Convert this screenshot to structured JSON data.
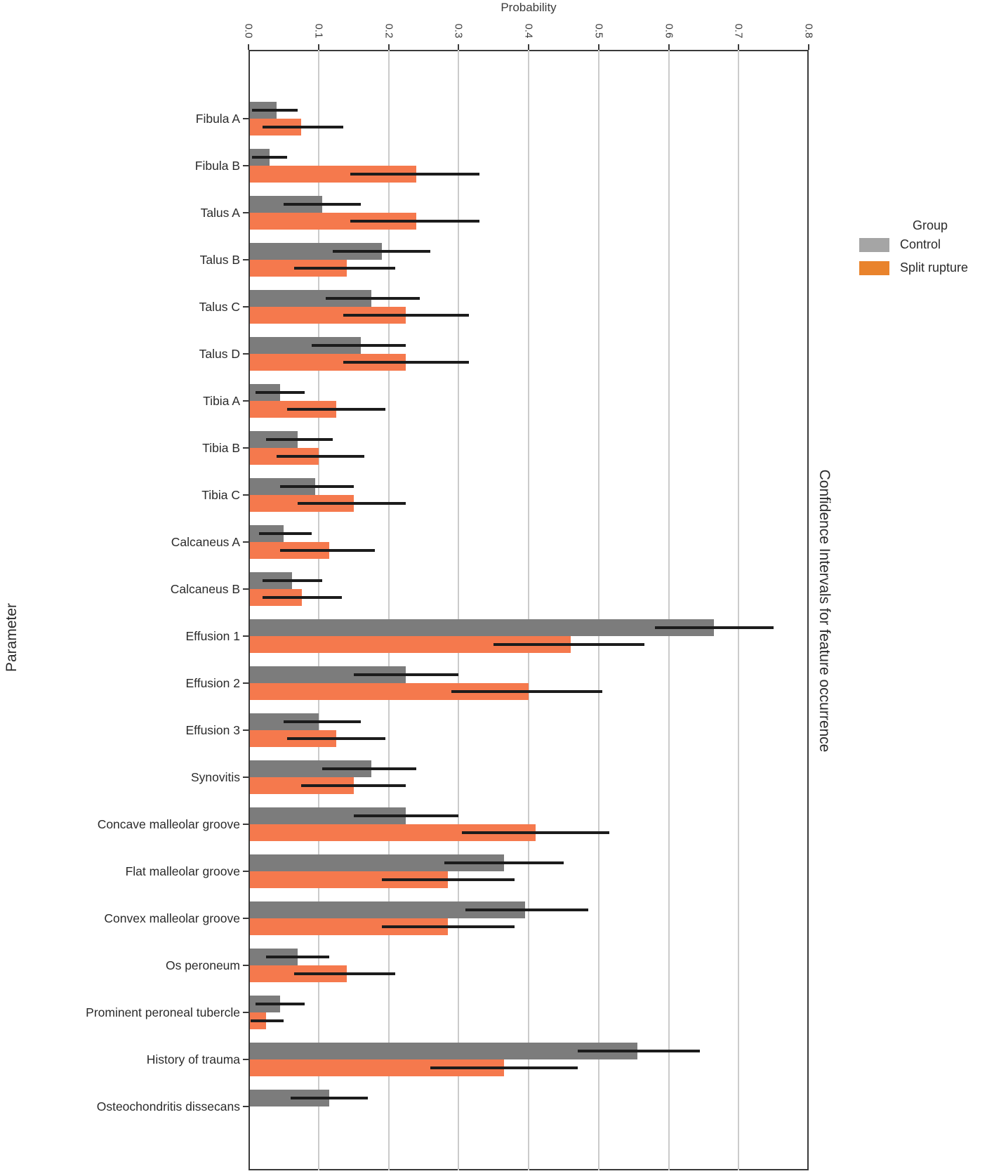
{
  "chart_data": {
    "type": "bar",
    "orientation": "horizontal",
    "xlabel": "Probability",
    "ylabel": "Parameter",
    "right_title": "Confidence Intervals for feature occurrence",
    "xlim": [
      0.0,
      0.8
    ],
    "x_ticks": [
      0.0,
      0.1,
      0.2,
      0.3,
      0.4,
      0.5,
      0.6,
      0.7,
      0.8
    ],
    "grid": true,
    "error_bars": true,
    "legend": {
      "title": "Group",
      "position": "right",
      "items": [
        {
          "label": "Control",
          "swatch_color": "#a5a5a5"
        },
        {
          "label": "Split rupture",
          "swatch_color": "#e9832c"
        }
      ]
    },
    "colors": {
      "control_bar": "#7c7c7c",
      "split_bar": "#f5794d",
      "error_bar": "#1c1c1c",
      "gridline": "#cbcbcb",
      "spine": "#3a3a3a"
    },
    "categories": [
      "Fibula A",
      "Fibula B",
      "Talus A",
      "Talus B",
      "Talus C",
      "Talus D",
      "Tibia A",
      "Tibia B",
      "Tibia C",
      "Calcaneus A",
      "Calcaneus B",
      "Effusion 1",
      "Effusion 2",
      "Effusion 3",
      "Synovitis",
      "Concave malleolar groove",
      "Flat malleolar groove",
      "Convex malleolar groove",
      "Os peroneum",
      "Prominent peroneal tubercle",
      "History of trauma",
      "Osteochondritis dissecans"
    ],
    "series": [
      {
        "name": "Control",
        "values": [
          0.04,
          0.03,
          0.105,
          0.19,
          0.175,
          0.16,
          0.045,
          0.07,
          0.095,
          0.05,
          0.062,
          0.665,
          0.225,
          0.1,
          0.175,
          0.225,
          0.365,
          0.395,
          0.07,
          0.045,
          0.555,
          0.115
        ],
        "ci_low": [
          0.005,
          0.005,
          0.05,
          0.12,
          0.11,
          0.09,
          0.01,
          0.025,
          0.045,
          0.015,
          0.02,
          0.58,
          0.15,
          0.05,
          0.105,
          0.15,
          0.28,
          0.31,
          0.025,
          0.01,
          0.47,
          0.06
        ],
        "ci_high": [
          0.07,
          0.055,
          0.16,
          0.26,
          0.245,
          0.225,
          0.08,
          0.12,
          0.15,
          0.09,
          0.105,
          0.75,
          0.3,
          0.16,
          0.24,
          0.3,
          0.45,
          0.485,
          0.115,
          0.08,
          0.645,
          0.17
        ]
      },
      {
        "name": "Split rupture",
        "values": [
          0.075,
          0.24,
          0.24,
          0.14,
          0.225,
          0.225,
          0.125,
          0.1,
          0.15,
          0.115,
          0.076,
          0.46,
          0.4,
          0.125,
          0.15,
          0.41,
          0.285,
          0.285,
          0.14,
          0.025,
          0.365,
          null
        ],
        "ci_low": [
          0.02,
          0.145,
          0.145,
          0.065,
          0.135,
          0.135,
          0.055,
          0.04,
          0.07,
          0.045,
          0.02,
          0.35,
          0.29,
          0.055,
          0.075,
          0.305,
          0.19,
          0.19,
          0.065,
          0.003,
          0.26,
          null
        ],
        "ci_high": [
          0.135,
          0.33,
          0.33,
          0.21,
          0.315,
          0.315,
          0.195,
          0.165,
          0.225,
          0.18,
          0.133,
          0.565,
          0.505,
          0.195,
          0.225,
          0.515,
          0.38,
          0.38,
          0.21,
          0.05,
          0.47,
          null
        ]
      }
    ]
  }
}
